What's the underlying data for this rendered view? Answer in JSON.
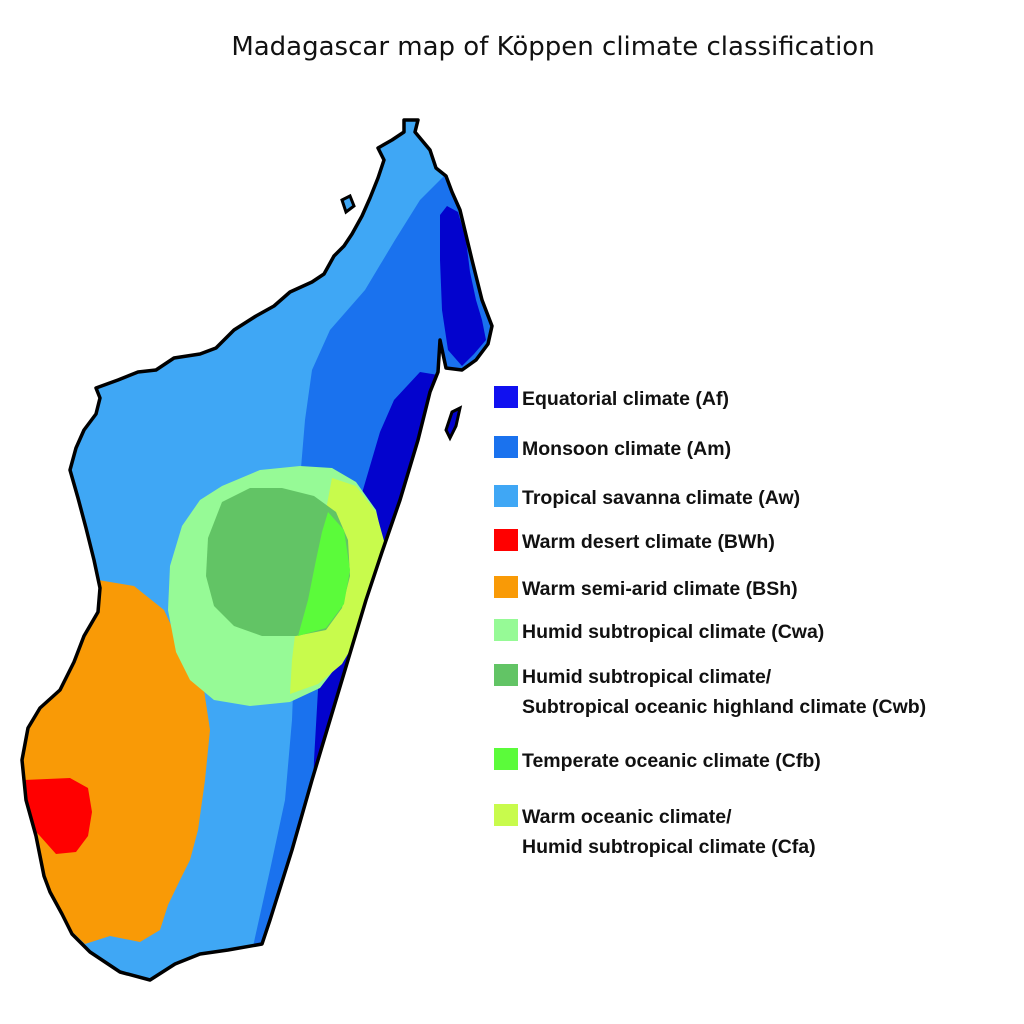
{
  "title": "Madagascar map of Köppen climate classification",
  "legend": [
    {
      "key": "Af",
      "lines": [
        "Equatorial climate (Af)"
      ],
      "color": "#1010f0"
    },
    {
      "key": "Am",
      "lines": [
        "Monsoon climate (Am)"
      ],
      "color": "#1a72ee"
    },
    {
      "key": "Aw",
      "lines": [
        "Tropical savanna climate (Aw)"
      ],
      "color": "#3fa7f5"
    },
    {
      "key": "BWh",
      "lines": [
        "Warm desert climate (BWh)"
      ],
      "color": "#ff0000"
    },
    {
      "key": "BSh",
      "lines": [
        "Warm semi-arid climate (BSh)"
      ],
      "color": "#f99a06"
    },
    {
      "key": "Cwa",
      "lines": [
        "Humid subtropical climate (Cwa)"
      ],
      "color": "#96fa96"
    },
    {
      "key": "Cwb",
      "lines": [
        "Humid subtropical climate/",
        "Subtropical oceanic highland climate (Cwb)"
      ],
      "color": "#62c465"
    },
    {
      "key": "Cfb",
      "lines": [
        "Temperate oceanic climate (Cfb)"
      ],
      "color": "#5bfb3a"
    },
    {
      "key": "Cfa",
      "lines": [
        "Warm oceanic climate/",
        "Humid subtropical climate (Cfa)"
      ],
      "color": "#c8fb4c"
    }
  ],
  "map_colors": {
    "Af_map": "#0303cd",
    "Am": "#1a72ee",
    "Aw": "#3fa7f5",
    "BWh": "#ff0000",
    "BSh": "#f99a06",
    "Cwa": "#96fa96",
    "Cwb": "#62c465",
    "Cfb": "#5bfb3a",
    "Cfa": "#c8fb4c",
    "outline": "#000000"
  }
}
